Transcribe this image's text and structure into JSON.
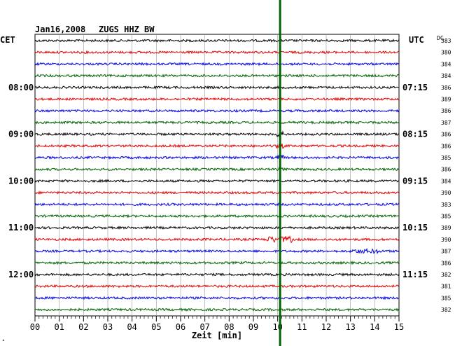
{
  "header": {
    "date": "Jan16,2008",
    "station": "ZUGS HHZ BW",
    "left_zone": "CET",
    "right_zone": "UTC",
    "dc_label": "DC"
  },
  "chart_data": {
    "type": "line",
    "title": "Jan16,2008   ZUGS HHZ BW",
    "xlabel": "Zeit [min]",
    "xlim": [
      0,
      15
    ],
    "x_ticks": [
      "00",
      "01",
      "02",
      "03",
      "04",
      "05",
      "06",
      "07",
      "08",
      "09",
      "10",
      "11",
      "12",
      "13",
      "14",
      "15"
    ],
    "trace_count": 24,
    "trace_colors": [
      "#000000",
      "#e00000",
      "#0000e0",
      "#006000"
    ],
    "cet_labels": [
      {
        "trace": 4,
        "label": "08:00"
      },
      {
        "trace": 8,
        "label": "09:00"
      },
      {
        "trace": 12,
        "label": "10:00"
      },
      {
        "trace": 16,
        "label": "11:00"
      },
      {
        "trace": 20,
        "label": "12:00"
      }
    ],
    "utc_labels": [
      {
        "trace": 4,
        "label": "07:15"
      },
      {
        "trace": 8,
        "label": "08:15"
      },
      {
        "trace": 12,
        "label": "09:15"
      },
      {
        "trace": 16,
        "label": "10:15"
      },
      {
        "trace": 20,
        "label": "11:15"
      }
    ],
    "dc_values": [
      "383",
      "380",
      "384",
      "384",
      "386",
      "389",
      "386",
      "387",
      "386",
      "386",
      "385",
      "386",
      "384",
      "390",
      "383",
      "385",
      "389",
      "390",
      "387",
      "386",
      "382",
      "381",
      "385",
      "382"
    ],
    "event_marker_minute": 10.1,
    "event_marker_color": "#006400"
  }
}
